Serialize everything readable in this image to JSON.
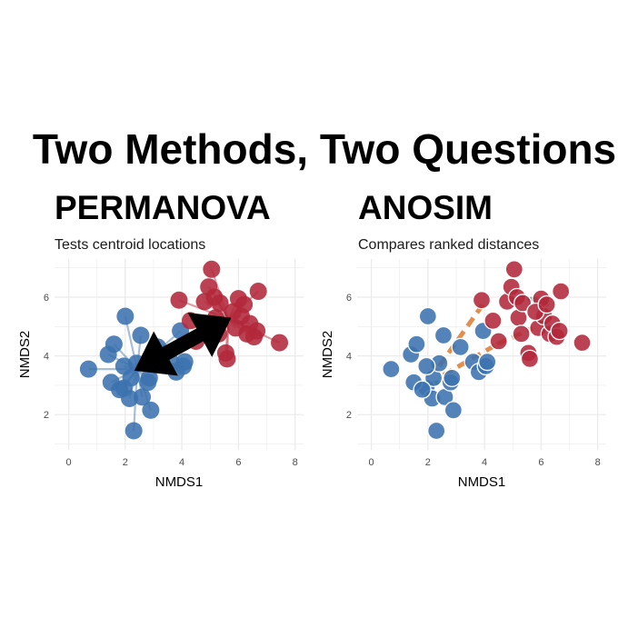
{
  "title": "Two Methods, Two Questions",
  "colors": {
    "group_a": "#3b72ae",
    "group_b": "#b2283a",
    "arrow": "#000000",
    "within_links": "#5fae92",
    "between_links": "#e08845",
    "grid": "#ebebeb"
  },
  "chart_data": [
    {
      "type": "scatter",
      "method": "PERMANOVA",
      "title": "PERMANOVA",
      "subtitle": "Tests centroid locations",
      "xlabel": "NMDS1",
      "ylabel": "NMDS2",
      "xlim": [
        -0.5,
        8.3
      ],
      "ylim": [
        0.8,
        7.3
      ],
      "xticks": [
        0,
        2,
        4,
        6,
        8
      ],
      "yticks": [
        2,
        4,
        6
      ],
      "grid": true,
      "annotation": "double-headed arrow between the two group centroids",
      "centroids": [
        {
          "group": "A",
          "x": 2.42,
          "y": 3.55
        },
        {
          "group": "B",
          "x": 5.65,
          "y": 5.25
        }
      ],
      "series": [
        {
          "color_key": "group_a",
          "x": [
            0.7,
            1.4,
            1.6,
            1.95,
            2.0,
            2.15,
            2.2,
            2.3,
            2.4,
            2.55,
            2.6,
            2.8,
            2.9,
            3.15,
            3.6,
            3.8,
            3.95,
            4.05,
            4.1,
            1.5,
            1.8,
            1.95,
            2.85
          ],
          "y": [
            3.55,
            4.05,
            4.4,
            2.9,
            5.35,
            2.55,
            3.25,
            1.45,
            3.75,
            4.7,
            2.6,
            3.1,
            2.15,
            4.3,
            3.8,
            3.45,
            4.85,
            3.65,
            3.8,
            3.1,
            2.85,
            3.65,
            3.25
          ]
        },
        {
          "color_key": "group_b",
          "x": [
            3.9,
            4.3,
            4.5,
            4.8,
            4.95,
            5.05,
            5.15,
            5.2,
            5.3,
            5.35,
            5.55,
            5.6,
            5.9,
            6.0,
            6.1,
            6.3,
            6.4,
            6.55,
            6.65,
            6.7,
            7.45,
            5.8,
            6.2
          ],
          "y": [
            5.9,
            5.2,
            4.5,
            5.85,
            6.35,
            6.95,
            6.0,
            5.3,
            4.75,
            5.8,
            4.1,
            3.9,
            4.95,
            5.95,
            5.35,
            4.75,
            5.1,
            4.65,
            4.85,
            6.2,
            4.45,
            5.5,
            5.75
          ]
        }
      ]
    },
    {
      "type": "scatter",
      "method": "ANOSIM",
      "title": "ANOSIM",
      "subtitle": "Compares ranked distances",
      "xlabel": "NMDS1",
      "ylabel": "NMDS2",
      "xlim": [
        -0.5,
        8.3
      ],
      "ylim": [
        0.8,
        7.3
      ],
      "xticks": [
        0,
        2,
        4,
        6,
        8
      ],
      "yticks": [
        2,
        4,
        6
      ],
      "grid": true,
      "annotation": "dashed lines linking point pairs within and between groups",
      "links": [
        {
          "kind": "within",
          "from": [
            4.95,
            5.9
          ],
          "to": [
            6.0,
            5.95
          ]
        },
        {
          "kind": "within",
          "from": [
            6.0,
            5.95
          ],
          "to": [
            6.35,
            5.6
          ]
        },
        {
          "kind": "within",
          "from": [
            2.05,
            3.05
          ],
          "to": [
            2.45,
            3.1
          ]
        },
        {
          "kind": "between",
          "from": [
            2.4,
            3.65
          ],
          "to": [
            4.05,
            5.9
          ]
        },
        {
          "kind": "between",
          "from": [
            2.55,
            3.35
          ],
          "to": [
            4.45,
            4.4
          ]
        },
        {
          "kind": "between",
          "from": [
            4.45,
            4.4
          ],
          "to": [
            5.7,
            4.95
          ]
        }
      ],
      "series": [
        {
          "color_key": "group_a",
          "x": [
            0.7,
            1.4,
            1.6,
            1.95,
            2.0,
            2.15,
            2.2,
            2.3,
            2.4,
            2.55,
            2.6,
            2.8,
            2.9,
            3.15,
            3.6,
            3.8,
            3.95,
            4.05,
            4.1,
            1.5,
            1.8,
            1.95,
            2.85
          ],
          "y": [
            3.55,
            4.05,
            4.4,
            2.9,
            5.35,
            2.55,
            3.25,
            1.45,
            3.75,
            4.7,
            2.6,
            3.1,
            2.15,
            4.3,
            3.8,
            3.45,
            4.85,
            3.65,
            3.8,
            3.1,
            2.85,
            3.65,
            3.25
          ]
        },
        {
          "color_key": "group_b",
          "x": [
            3.9,
            4.3,
            4.5,
            4.8,
            4.95,
            5.05,
            5.15,
            5.2,
            5.3,
            5.35,
            5.55,
            5.6,
            5.9,
            6.0,
            6.1,
            6.3,
            6.4,
            6.55,
            6.65,
            6.7,
            7.45,
            5.8,
            6.2
          ],
          "y": [
            5.9,
            5.2,
            4.5,
            5.85,
            6.35,
            6.95,
            6.0,
            5.3,
            4.75,
            5.8,
            4.1,
            3.9,
            4.95,
            5.95,
            5.35,
            4.75,
            5.1,
            4.65,
            4.85,
            6.2,
            4.45,
            5.5,
            5.75
          ]
        }
      ]
    }
  ]
}
